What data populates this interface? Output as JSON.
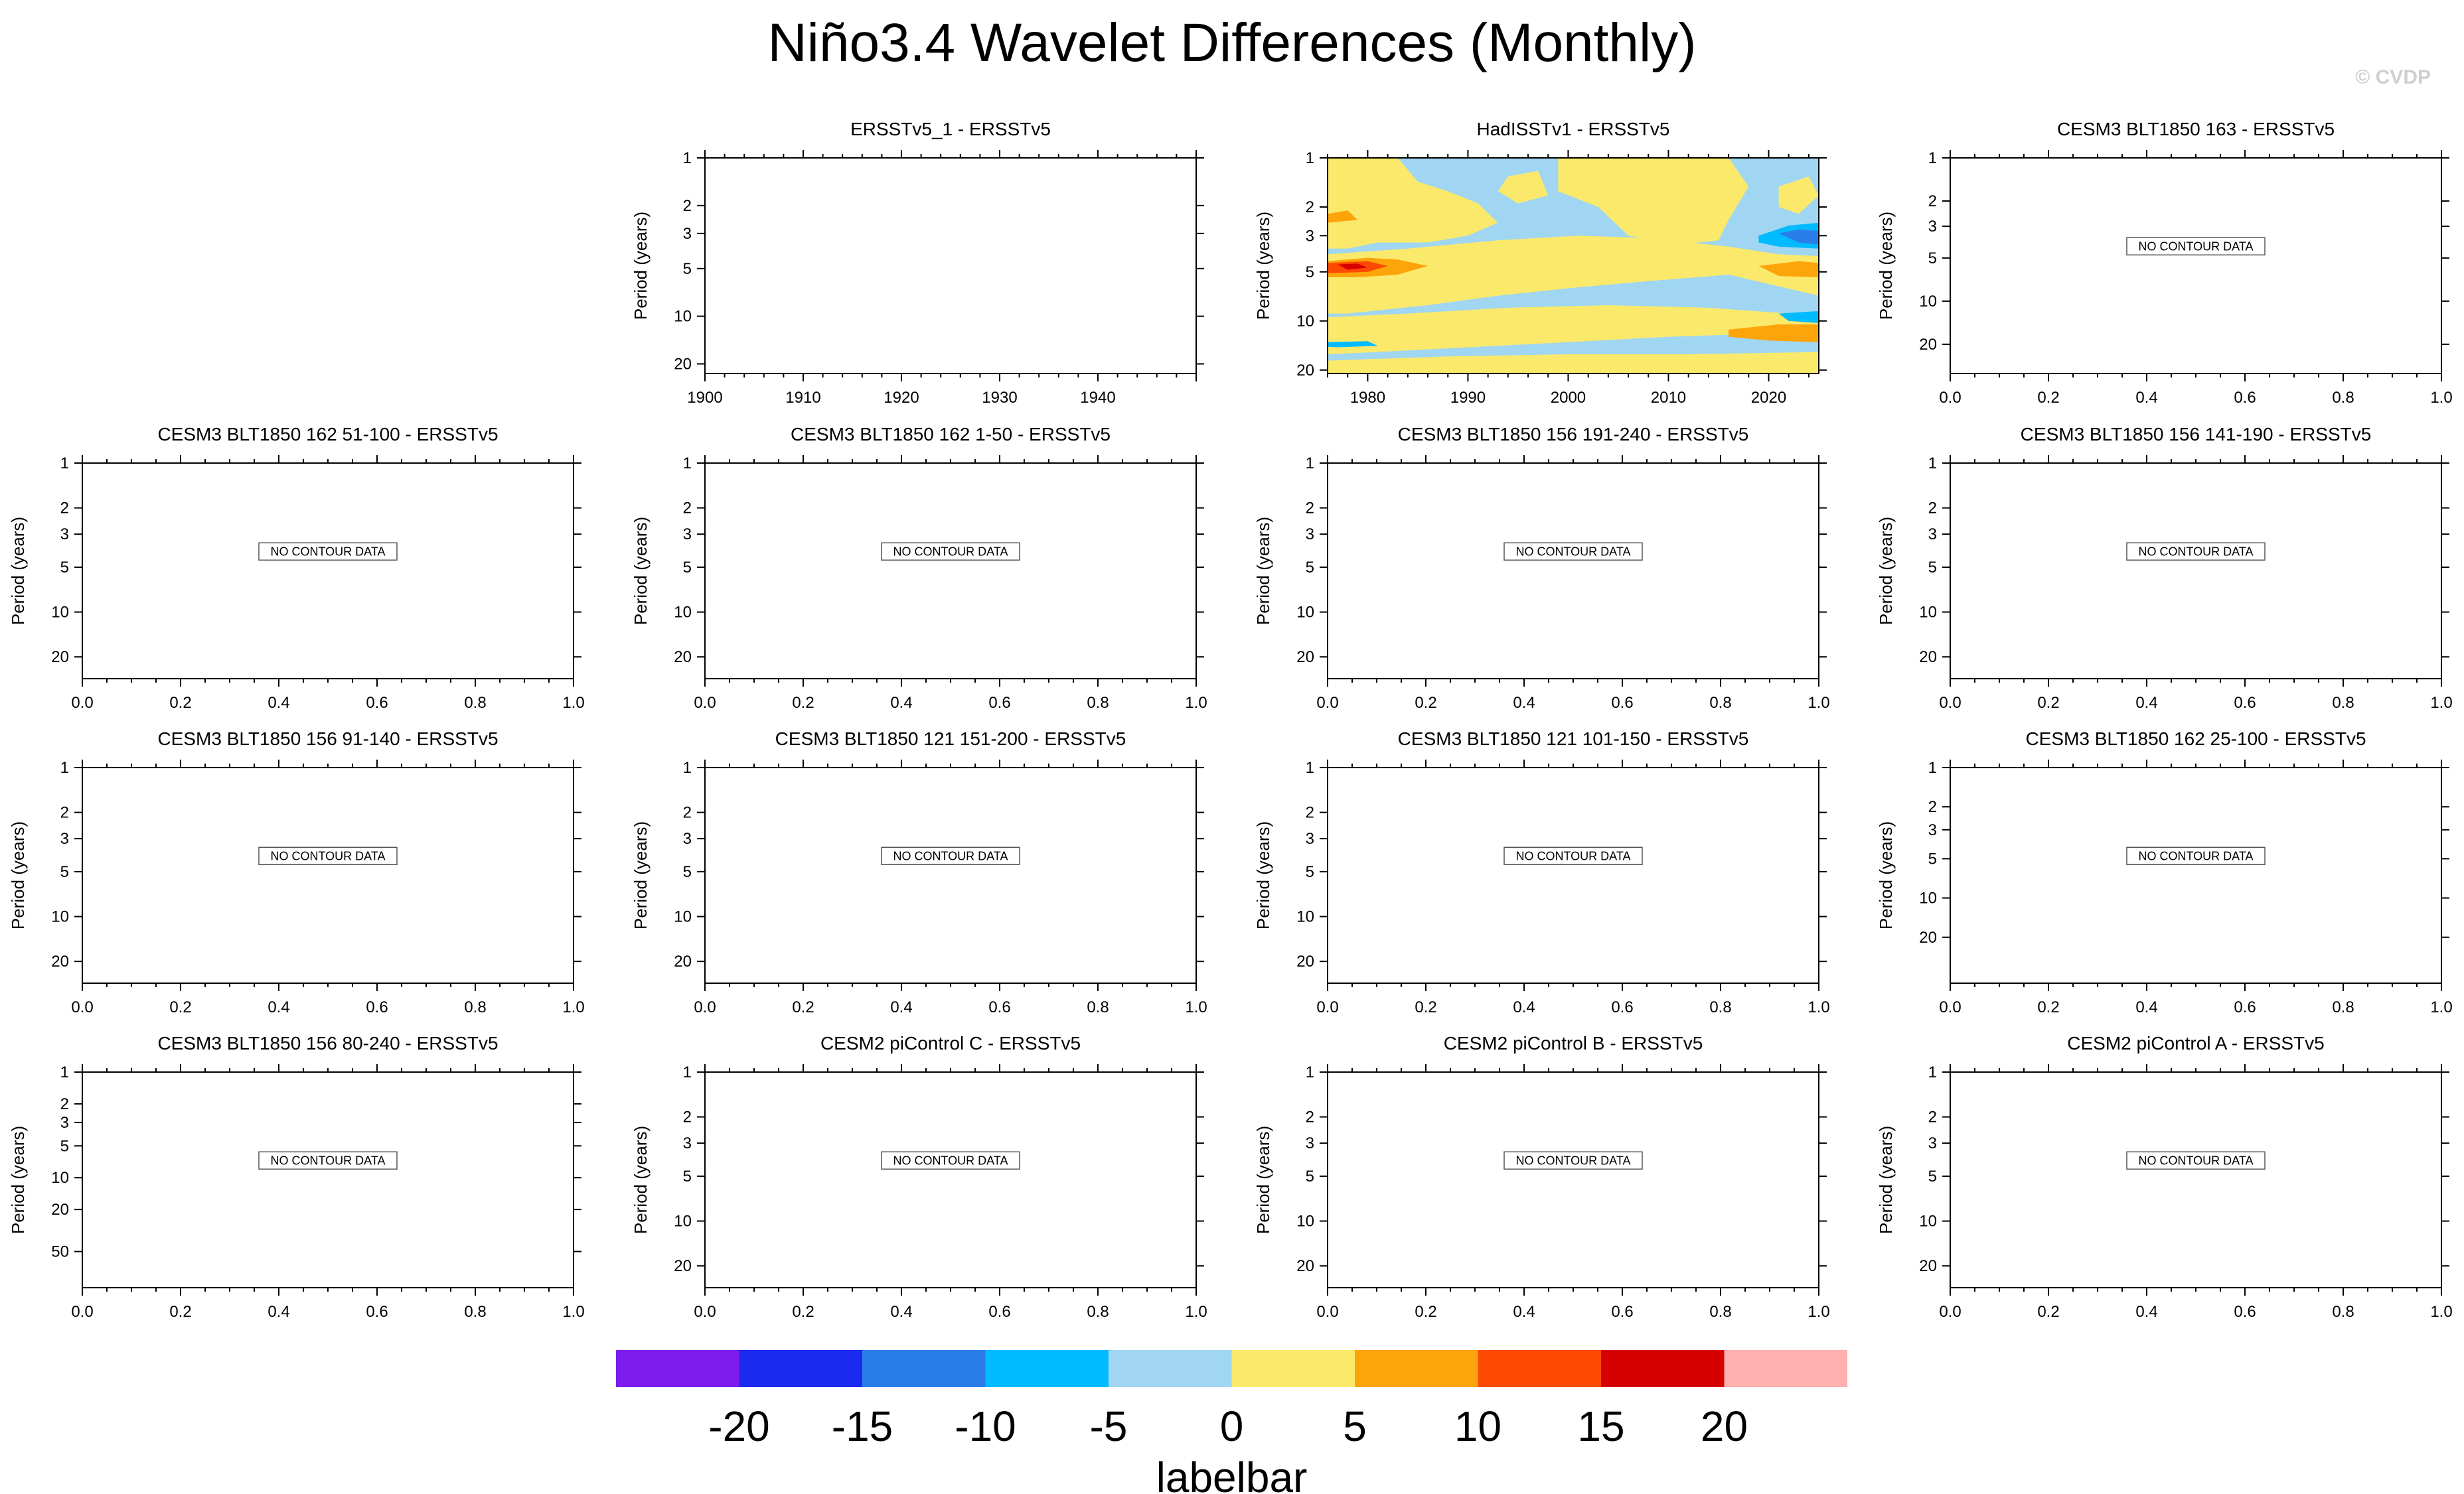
{
  "title": "Niño3.4 Wavelet Differences (Monthly)",
  "watermark": "© CVDP",
  "colors": {
    "frame": "#000000",
    "nodata_box_fill": "#ffffff",
    "nodata_box_border": "#555555"
  },
  "chart_data": {
    "type": "heatmap",
    "layout": "4x4 grid; top-left slot empty",
    "no_data_label": "NO CONTOUR DATA",
    "default_axis": {
      "x_ticks": [
        "0.0",
        "0.2",
        "0.4",
        "0.6",
        "0.8",
        "1.0"
      ],
      "y_ticks": [
        1,
        2,
        3,
        5,
        10,
        20
      ],
      "y_range": [
        1,
        28
      ],
      "y_scale": "log"
    },
    "panels": [
      {
        "title": "ERSSTv5_1 - ERSSTv5",
        "ylabel": "Period (years)",
        "x_range": [
          1900,
          1950
        ],
        "x_ticks": [
          "1900",
          "1910",
          "1920",
          "1930",
          "1940"
        ],
        "y_ticks": [
          1,
          2,
          3,
          5,
          10,
          20
        ],
        "y_range": [
          1,
          23
        ],
        "y_scale": "log",
        "state": "blank"
      },
      {
        "title": "HadISSTv1 - ERSSTv5",
        "ylabel": "Period (years)",
        "x_range": [
          1976,
          2025
        ],
        "x_ticks": [
          "1980",
          "1990",
          "2000",
          "2010",
          "2020"
        ],
        "y_ticks": [
          1,
          2,
          3,
          5,
          10,
          20
        ],
        "y_range": [
          1,
          21
        ],
        "y_scale": "log",
        "state": "contour",
        "contour_regions": [
          {
            "level": "0 to 5",
            "color": "#fbe96c",
            "points": [
              [
                1976,
                1
              ],
              [
                1983,
                1
              ],
              [
                1985,
                1.4
              ],
              [
                1988,
                1.6
              ],
              [
                1991,
                1.9
              ],
              [
                1993,
                2.5
              ],
              [
                1990,
                3.0
              ],
              [
                1986,
                3.3
              ],
              [
                1981,
                3.3
              ],
              [
                1978,
                3.6
              ],
              [
                1976,
                3.6
              ]
            ]
          },
          {
            "level": "0 to 5",
            "color": "#fbe96c",
            "points": [
              [
                1976,
                3.9
              ],
              [
                1984,
                3.6
              ],
              [
                1993,
                3.2
              ],
              [
                2001,
                3.0
              ],
              [
                2008,
                3.1
              ],
              [
                2016,
                3.5
              ],
              [
                2021,
                3.9
              ],
              [
                2025,
                4.0
              ],
              [
                2025,
                7.0
              ],
              [
                2016,
                5.2
              ],
              [
                2008,
                5.7
              ],
              [
                2000,
                6.3
              ],
              [
                1993,
                7.0
              ],
              [
                1986,
                8.0
              ],
              [
                1978,
                9.0
              ],
              [
                1976,
                9.0
              ]
            ]
          },
          {
            "level": "0 to 5",
            "color": "#fbe96c",
            "points": [
              [
                1976,
                9.5
              ],
              [
                1984,
                9.0
              ],
              [
                1994,
                8.3
              ],
              [
                2004,
                8.0
              ],
              [
                2014,
                8.3
              ],
              [
                2022,
                9.0
              ],
              [
                2025,
                9.5
              ],
              [
                2025,
                11.0
              ],
              [
                2019,
                12.0
              ],
              [
                2010,
                12.5
              ],
              [
                2000,
                13.5
              ],
              [
                1990,
                14.5
              ],
              [
                1981,
                15.5
              ],
              [
                1976,
                16.0
              ]
            ]
          },
          {
            "level": "0 to 5",
            "color": "#fbe96c",
            "points": [
              [
                1976,
                17.5
              ],
              [
                1988,
                16.5
              ],
              [
                2000,
                16.0
              ],
              [
                2012,
                16.0
              ],
              [
                2025,
                15.5
              ],
              [
                2025,
                21
              ],
              [
                1976,
                21
              ]
            ]
          },
          {
            "level": "0 to 5",
            "color": "#fbe96c",
            "points": [
              [
                1999,
                1
              ],
              [
                2016,
                1
              ],
              [
                2018,
                1.5
              ],
              [
                2016,
                2.4
              ],
              [
                2015,
                3.2
              ],
              [
                2011,
                3.4
              ],
              [
                2006,
                3.0
              ],
              [
                2003,
                2.0
              ],
              [
                1999,
                1.6
              ]
            ]
          },
          {
            "level": "0 to 5",
            "color": "#fbe96c",
            "points": [
              [
                1994,
                1.3
              ],
              [
                1997,
                1.2
              ],
              [
                1998,
                1.7
              ],
              [
                1995,
                1.9
              ],
              [
                1993,
                1.6
              ]
            ]
          },
          {
            "level": "0 to 5",
            "color": "#fbe96c",
            "points": [
              [
                2021,
                1.5
              ],
              [
                2024,
                1.3
              ],
              [
                2025,
                1.7
              ],
              [
                2023,
                2.2
              ],
              [
                2021,
                2.0
              ]
            ]
          },
          {
            "level": "0 to 5",
            "color": "#fbe96c",
            "points": [
              [
                1979,
                2.2
              ],
              [
                1982,
                2.1
              ],
              [
                1984,
                2.4
              ],
              [
                1981,
                2.7
              ],
              [
                1979,
                2.5
              ]
            ]
          },
          {
            "level": "5 to 10",
            "color": "#fca40a",
            "points": [
              [
                1976,
                2.2
              ],
              [
                1978,
                2.1
              ],
              [
                1979,
                2.4
              ],
              [
                1976,
                2.5
              ]
            ]
          },
          {
            "level": "5 to 10",
            "color": "#fca40a",
            "points": [
              [
                1976,
                4.3
              ],
              [
                1980,
                4.1
              ],
              [
                1983,
                4.2
              ],
              [
                1986,
                4.6
              ],
              [
                1983,
                5.2
              ],
              [
                1979,
                5.4
              ],
              [
                1976,
                5.4
              ]
            ]
          },
          {
            "level": "10 to 15",
            "color": "#fd4a03",
            "points": [
              [
                1976,
                4.4
              ],
              [
                1980,
                4.3
              ],
              [
                1982,
                4.6
              ],
              [
                1980,
                5.0
              ],
              [
                1976,
                5.1
              ]
            ]
          },
          {
            "level": "15 to 20",
            "color": "#d70000",
            "points": [
              [
                1977,
                4.5
              ],
              [
                1979,
                4.45
              ],
              [
                1980,
                4.7
              ],
              [
                1978,
                4.85
              ]
            ]
          },
          {
            "level": "5 to 10",
            "color": "#fca40a",
            "points": [
              [
                2019,
                4.6
              ],
              [
                2023,
                4.3
              ],
              [
                2025,
                4.4
              ],
              [
                2025,
                5.4
              ],
              [
                2021,
                5.3
              ]
            ]
          },
          {
            "level": "5 to 10",
            "color": "#fca40a",
            "points": [
              [
                2016,
                11.3
              ],
              [
                2021,
                10.5
              ],
              [
                2025,
                10.5
              ],
              [
                2025,
                13.5
              ],
              [
                2020,
                13.2
              ],
              [
                2016,
                12.5
              ]
            ]
          },
          {
            "level": "-10 to -5",
            "color": "#00bbff",
            "points": [
              [
                2019,
                3.0
              ],
              [
                2022,
                2.6
              ],
              [
                2025,
                2.5
              ],
              [
                2025,
                3.6
              ],
              [
                2021,
                3.5
              ],
              [
                2019,
                3.3
              ]
            ]
          },
          {
            "level": "-15 to -10",
            "color": "#2b7de9",
            "points": [
              [
                2021,
                2.9
              ],
              [
                2023,
                2.75
              ],
              [
                2025,
                2.8
              ],
              [
                2025,
                3.4
              ],
              [
                2023,
                3.3
              ]
            ]
          },
          {
            "level": "-10 to -5",
            "color": "#00bbff",
            "points": [
              [
                2021,
                9.0
              ],
              [
                2025,
                8.7
              ],
              [
                2025,
                10.3
              ],
              [
                2022,
                10.0
              ]
            ]
          },
          {
            "level": "-10 to -5",
            "color": "#00bbff",
            "points": [
              [
                1976,
                13.5
              ],
              [
                1980,
                13.3
              ],
              [
                1981,
                14.2
              ],
              [
                1977,
                14.5
              ],
              [
                1976,
                14.4
              ]
            ]
          }
        ]
      },
      {
        "title": "CESM3 BLT1850 163 - ERSSTv5",
        "ylabel": "Period (years)",
        "y_ticks": [
          1,
          2,
          3,
          5,
          10,
          20
        ],
        "y_range": [
          1,
          32
        ],
        "y_scale": "log",
        "state": "nodata"
      },
      {
        "title": "CESM3 BLT1850 162 51-100 - ERSSTv5",
        "ylabel": "Period (years)",
        "state": "nodata"
      },
      {
        "title": "CESM3 BLT1850 162 1-50 - ERSSTv5",
        "ylabel": "Period (years)",
        "state": "nodata"
      },
      {
        "title": "CESM3 BLT1850 156 191-240 - ERSSTv5",
        "ylabel": "Period (years)",
        "state": "nodata"
      },
      {
        "title": "CESM3 BLT1850 156 141-190 - ERSSTv5",
        "ylabel": "Period (years)",
        "state": "nodata"
      },
      {
        "title": "CESM3 BLT1850 156 91-140 - ERSSTv5",
        "ylabel": "Period (years)",
        "state": "nodata"
      },
      {
        "title": "CESM3 BLT1850 121 151-200 - ERSSTv5",
        "ylabel": "Period (years)",
        "state": "nodata"
      },
      {
        "title": "CESM3 BLT1850 121 101-150 - ERSSTv5",
        "ylabel": "Period (years)",
        "state": "nodata"
      },
      {
        "title": "CESM3 BLT1850 162 25-100 - ERSSTv5",
        "ylabel": "Period (years)",
        "y_ticks": [
          1,
          2,
          3,
          5,
          10,
          20
        ],
        "y_range": [
          1,
          45
        ],
        "y_scale": "log",
        "state": "nodata"
      },
      {
        "title": "CESM3 BLT1850 156 80-240 - ERSSTv5",
        "ylabel": "Period (years)",
        "y_ticks": [
          1,
          2,
          3,
          5,
          10,
          20,
          50
        ],
        "y_range": [
          1,
          110
        ],
        "y_scale": "log",
        "state": "nodata"
      },
      {
        "title": "CESM2 piControl C - ERSSTv5",
        "ylabel": "Period (years)",
        "state": "nodata"
      },
      {
        "title": "CESM2 piControl B - ERSSTv5",
        "ylabel": "Period (years)",
        "state": "nodata"
      },
      {
        "title": "CESM2 piControl A - ERSSTv5",
        "ylabel": "Period (years)",
        "state": "nodata"
      }
    ],
    "colorbar": {
      "title": "labelbar",
      "tick_labels": [
        "-20",
        "-15",
        "-10",
        "-5",
        "0",
        "5",
        "10",
        "15",
        "20"
      ],
      "colors": [
        "#7d1ded",
        "#1a2aef",
        "#2b7de9",
        "#00bbff",
        "#a0d6f1",
        "#fbe96c",
        "#fca40a",
        "#fd4a03",
        "#d70000",
        "#ffafaf"
      ]
    }
  }
}
